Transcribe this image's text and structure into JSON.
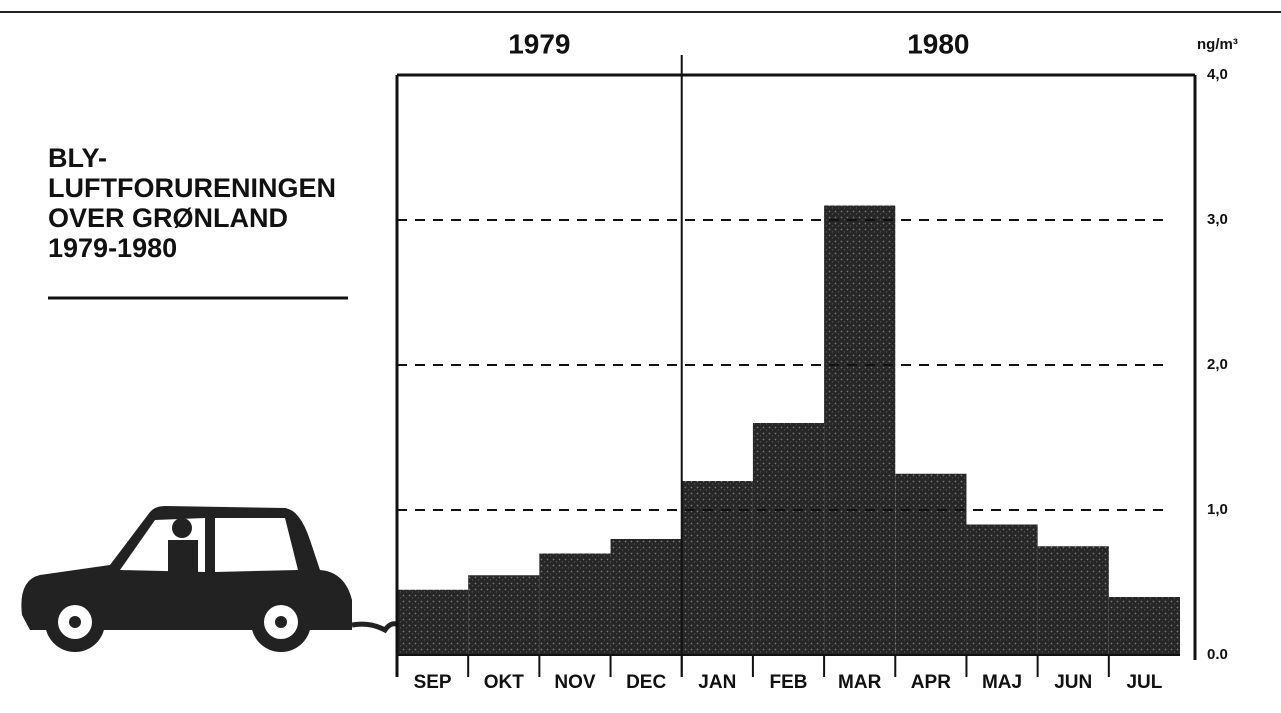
{
  "chart_data": {
    "type": "bar",
    "title": [
      "BLY-",
      "LUFTFORURENINGEN",
      "OVER GRØNLAND",
      "1979-1980"
    ],
    "year_labels": [
      "1979",
      "1980"
    ],
    "y_label": "ng/m³",
    "categories": [
      "SEP",
      "OKT",
      "NOV",
      "DEC",
      "JAN",
      "FEB",
      "MAR",
      "APR",
      "MAJ",
      "JUN",
      "JUL"
    ],
    "values": [
      0.45,
      0.55,
      0.7,
      0.8,
      1.2,
      1.6,
      3.1,
      1.25,
      0.9,
      0.75,
      0.4
    ],
    "color": "#2a2a2a",
    "ylim": [
      0,
      4
    ],
    "yticks": [
      {
        "value": 0,
        "label": "0.0"
      },
      {
        "value": 1,
        "label": "1,0"
      },
      {
        "value": 2,
        "label": "2,0"
      },
      {
        "value": 3,
        "label": "3,0"
      },
      {
        "value": 4,
        "label": "4,0"
      }
    ],
    "grid": true
  }
}
